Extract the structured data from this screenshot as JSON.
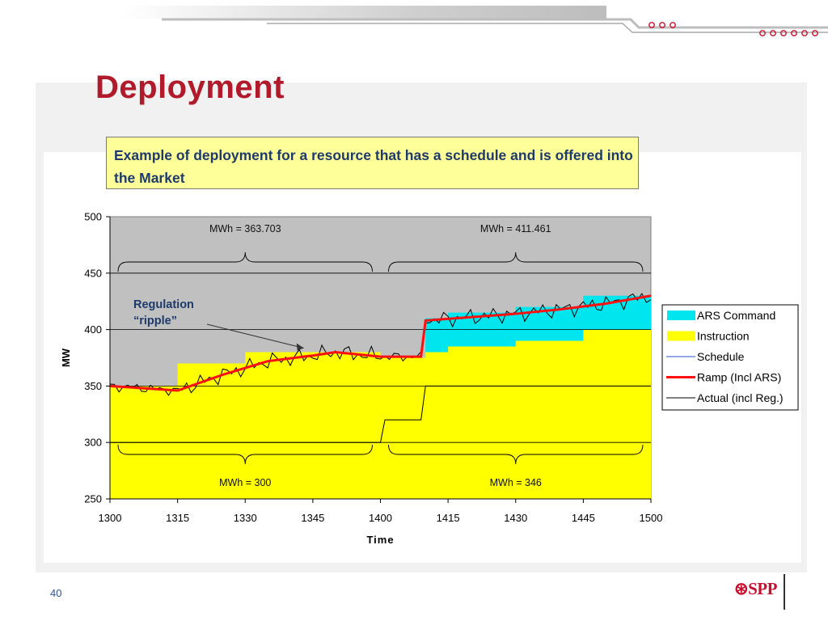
{
  "slide": {
    "title": "Deployment",
    "callout": "Example of deployment for a resource that has a schedule and is offered into the Market",
    "page_number": "40",
    "logo_text": "SPP",
    "logo_mark": "⊛"
  },
  "colors": {
    "title": "#b01a2a",
    "instruction": "#ffff00",
    "ars_command": "#00e5ee",
    "plot_bg": "#c0c0c0",
    "ramp": "#ff1010",
    "schedule": "#000000",
    "actual": "#000000",
    "callout_bg": "#ffff99"
  },
  "chart_data": {
    "type": "area",
    "xlabel": "Time",
    "ylabel": "MW",
    "xlim": [
      1300,
      1500
    ],
    "ylim": [
      250,
      500
    ],
    "x_ticks": [
      "1300",
      "1315",
      "1330",
      "1345",
      "1400",
      "1415",
      "1430",
      "1445",
      "1500"
    ],
    "y_ticks": [
      "250",
      "300",
      "350",
      "400",
      "450",
      "500"
    ],
    "grid": "horizontal",
    "legend_position": "right",
    "legend": [
      "ARS Command",
      "Instruction",
      "Schedule",
      "Ramp (Incl ARS)",
      "Actual (incl Reg.)"
    ],
    "series": [
      {
        "name": "Instruction",
        "kind": "step-area",
        "steps": [
          [
            0,
            350
          ],
          [
            15,
            370
          ],
          [
            30,
            380
          ],
          [
            60,
            375
          ],
          [
            70,
            380
          ],
          [
            75,
            385
          ],
          [
            90,
            390
          ],
          [
            105,
            400
          ],
          [
            120,
            400
          ]
        ]
      },
      {
        "name": "ARS Command",
        "kind": "step-area-top",
        "steps": [
          [
            0,
            350
          ],
          [
            15,
            370
          ],
          [
            30,
            380
          ],
          [
            60,
            375
          ],
          [
            70,
            410
          ],
          [
            75,
            415
          ],
          [
            90,
            420
          ],
          [
            105,
            430
          ],
          [
            120,
            430
          ]
        ]
      },
      {
        "name": "Schedule",
        "kind": "line",
        "points": [
          [
            0,
            300
          ],
          [
            60,
            300
          ],
          [
            61,
            320
          ],
          [
            69,
            320
          ],
          [
            70,
            350
          ],
          [
            120,
            350
          ]
        ]
      },
      {
        "name": "Ramp (Incl ARS)",
        "kind": "line",
        "points": [
          [
            0,
            350
          ],
          [
            15,
            346
          ],
          [
            25,
            360
          ],
          [
            35,
            372
          ],
          [
            45,
            377
          ],
          [
            50,
            380
          ],
          [
            60,
            376
          ],
          [
            69,
            376
          ],
          [
            70,
            408
          ],
          [
            80,
            411
          ],
          [
            90,
            414
          ],
          [
            100,
            418
          ],
          [
            110,
            423
          ],
          [
            120,
            430
          ]
        ]
      },
      {
        "name": "Actual (incl Reg.)",
        "kind": "line-noisy",
        "note": "ramp plus regulation ripple"
      }
    ],
    "annotations": [
      {
        "text": "MWh = 363.703",
        "span": [
          0,
          60
        ],
        "level": 500
      },
      {
        "text": "MWh = 411.461",
        "span": [
          60,
          120
        ],
        "level": 500
      },
      {
        "text": "MWh = 300",
        "span": [
          0,
          60
        ],
        "level": 300
      },
      {
        "text": "MWh = 346",
        "span": [
          60,
          120
        ],
        "level": 350
      },
      {
        "text": "Regulation",
        "line2": "“ripple”",
        "target": [
          43,
          385
        ]
      }
    ]
  }
}
